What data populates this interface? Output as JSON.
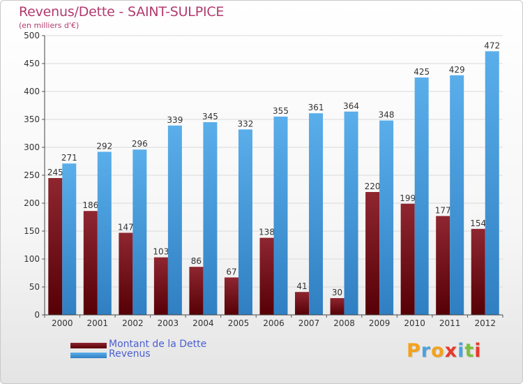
{
  "chart_data": {
    "type": "bar",
    "title": "Revenus/Dette - SAINT-SULPICE",
    "subtitle": "(en milliers d'€)",
    "categories": [
      "2000",
      "2001",
      "2002",
      "2003",
      "2004",
      "2005",
      "2006",
      "2007",
      "2008",
      "2009",
      "2010",
      "2011",
      "2012"
    ],
    "series": [
      {
        "name": "Montant de la Dette",
        "values": [
          245,
          186,
          147,
          103,
          86,
          67,
          138,
          41,
          30,
          220,
          199,
          177,
          154
        ],
        "color": "#7a1016"
      },
      {
        "name": "Revenus",
        "values": [
          271,
          292,
          296,
          339,
          345,
          332,
          355,
          361,
          364,
          348,
          425,
          429,
          472
        ],
        "color": "#3f9be0"
      }
    ],
    "ylim": [
      0,
      500
    ],
    "yticks": [
      0,
      50,
      100,
      150,
      200,
      250,
      300,
      350,
      400,
      450,
      500
    ],
    "grid": true,
    "legend_position": "bottom-left"
  },
  "logo": {
    "letters": [
      "P",
      "r",
      "o",
      "x",
      "i",
      "t",
      "i"
    ],
    "colors": [
      "#f4a21c",
      "#4aa3df",
      "#f4a21c",
      "#e8392b",
      "#4aa3df",
      "#7cbf3a",
      "#e8392b"
    ]
  }
}
